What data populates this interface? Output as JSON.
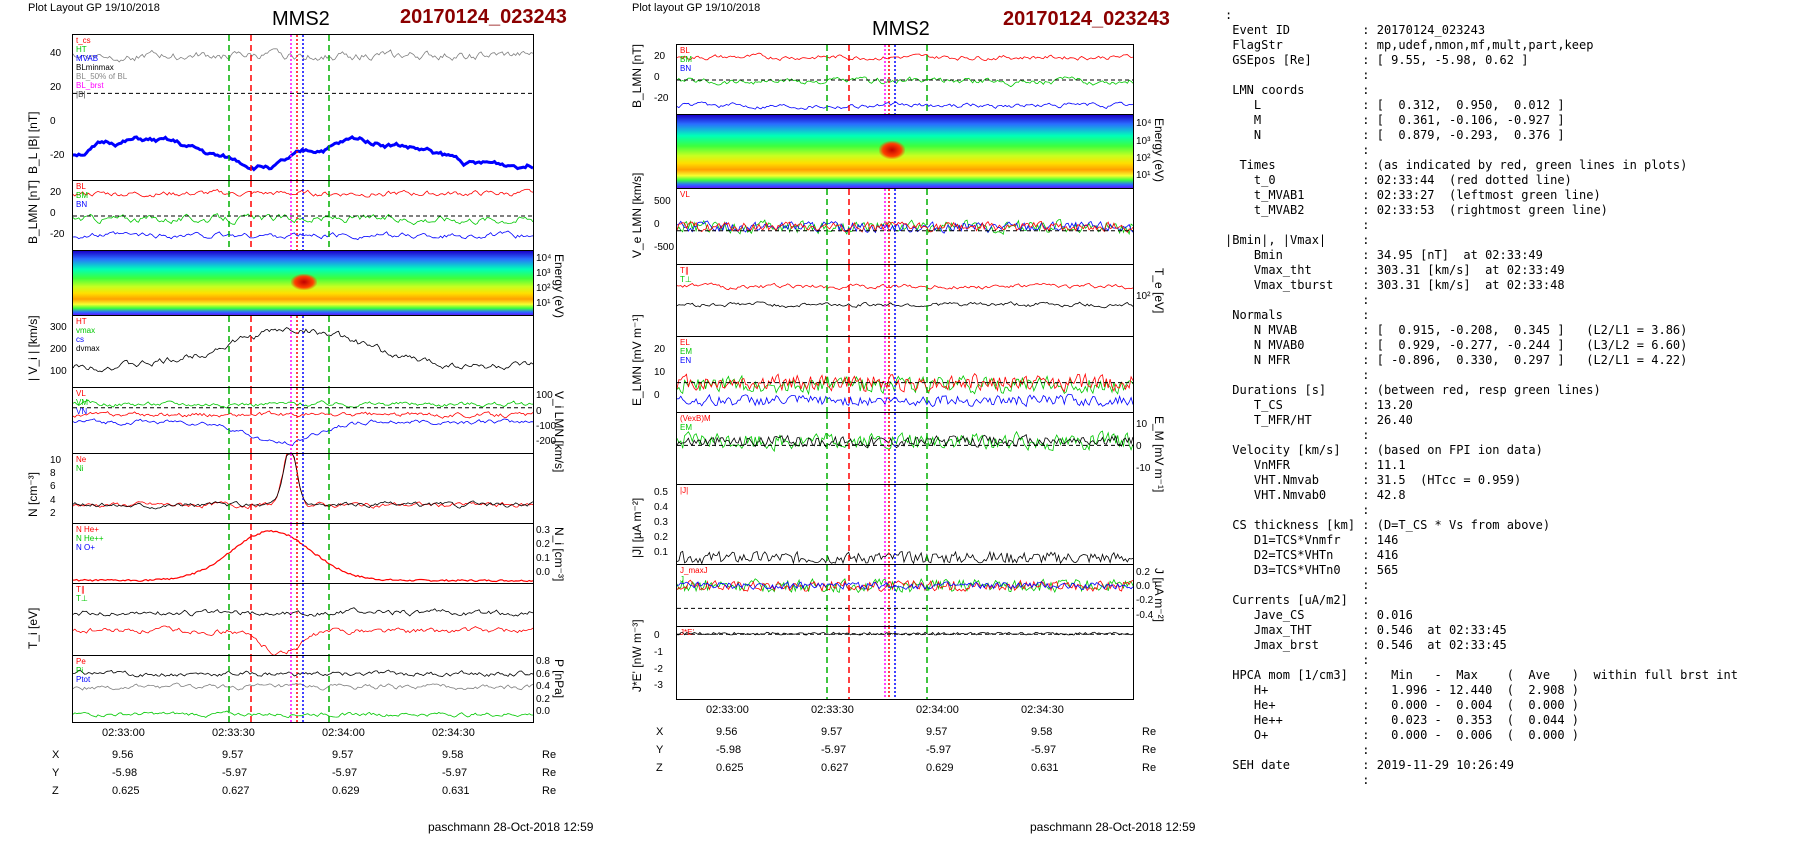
{
  "left": {
    "header": "Plot Layout GP 19/10/2018",
    "spacecraft": "MMS2",
    "event": "20170124_023243",
    "footer": "paschmann 28-Oct-2018 12:59",
    "time_ticks": [
      "02:33:00",
      "02:33:30",
      "02:34:00",
      "02:34:30"
    ],
    "panels": [
      {
        "ylabel": "B_L |B| [nT]",
        "ticks": [
          "40",
          "20",
          "0",
          "-20"
        ],
        "legend": [
          "t_cs",
          "HT",
          "MVAB",
          "BLminmax",
          "BL_50% of BL",
          "BL_brst",
          "|B|"
        ]
      },
      {
        "ylabel": "B_LMN [nT]",
        "ticks": [
          "20",
          "0",
          "-20"
        ],
        "legend": [
          "BL",
          "BM",
          "BN"
        ]
      },
      {
        "ylabel": "Energy (eV)",
        "ticks": [
          "10⁴",
          "10³",
          "10²",
          "10¹"
        ],
        "legend": []
      },
      {
        "ylabel": "| V_i | [km/s]",
        "ticks": [
          "300",
          "200",
          "100"
        ],
        "legend": [
          "HT",
          "vmax",
          "cs",
          "dvmax"
        ]
      },
      {
        "ylabel": "V_i LMN [km/s]",
        "ticks": [
          "100",
          "0",
          "-100",
          "-200"
        ],
        "legend": [
          "VL",
          "VM",
          "VN"
        ]
      },
      {
        "ylabel": "N [cm⁻³]",
        "ticks": [
          "10",
          "8",
          "6",
          "4",
          "2"
        ],
        "legend": [
          "Ne",
          "Ni"
        ]
      },
      {
        "ylabel": "N_i [cm⁻³]",
        "ticks": [
          "0.3",
          "0.2",
          "0.1",
          "0.0"
        ],
        "legend": [
          "N He+",
          "N He++",
          "N O+"
        ]
      },
      {
        "ylabel": "T_i [eV]",
        "ticks": [],
        "legend": [
          "T∥",
          "T⊥"
        ]
      },
      {
        "ylabel": "P [nPa]",
        "ticks": [
          "0.8",
          "0.6",
          "0.4",
          "0.2",
          "0.0"
        ],
        "legend": [
          "Pe",
          "Pi",
          "Ptot"
        ]
      }
    ],
    "positions": {
      "rows": [
        {
          "label": "X",
          "vals": [
            "9.56",
            "9.57",
            "9.57",
            "9.58"
          ],
          "unit": "Re"
        },
        {
          "label": "Y",
          "vals": [
            "-5.98",
            "-5.97",
            "-5.97",
            "-5.97"
          ],
          "unit": "Re"
        },
        {
          "label": "Z",
          "vals": [
            "0.625",
            "0.627",
            "0.629",
            "0.631"
          ],
          "unit": "Re"
        }
      ]
    }
  },
  "middle": {
    "header": "Plot layout GP 19/10/2018",
    "spacecraft": "MMS2",
    "event": "20170124_023243",
    "footer": "paschmann 28-Oct-2018 12:59",
    "time_ticks": [
      "02:33:00",
      "02:33:30",
      "02:34:00",
      "02:34:30"
    ],
    "panels": [
      {
        "ylabel": "B_LMN [nT]",
        "ticks": [
          "20",
          "0",
          "-20"
        ],
        "legend": [
          "BL",
          "BM",
          "BN"
        ]
      },
      {
        "ylabel": "Energy (eV)",
        "ticks": [
          "10⁴",
          "10³",
          "10²",
          "10¹"
        ],
        "legend": []
      },
      {
        "ylabel": "V_e LMN [km/s]",
        "ticks": [
          "500",
          "0",
          "-500"
        ],
        "legend": [
          "VL"
        ]
      },
      {
        "ylabel": "T_e [eV]",
        "ticks": [
          "10²"
        ],
        "legend": [
          "T∥",
          "T⊥"
        ]
      },
      {
        "ylabel": "E_LMN [mV m⁻¹]",
        "ticks": [
          "20",
          "10",
          "0"
        ],
        "legend": [
          "EL",
          "EM",
          "EN"
        ]
      },
      {
        "ylabel": "E_M [mV m⁻¹]",
        "ticks": [
          "10",
          "0",
          "-10"
        ],
        "legend": [
          "(VexB)M",
          "EM"
        ]
      },
      {
        "ylabel": "|J| [µA m⁻²]",
        "ticks": [
          "0.5",
          "0.4",
          "0.3",
          "0.2",
          "0.1"
        ],
        "legend": [
          "|J|"
        ]
      },
      {
        "ylabel": "J [µA m⁻²]",
        "ticks": [
          "0.2",
          "0.0",
          "-0.2",
          "-0.4"
        ],
        "legend": [
          "J_maxJ",
          "J"
        ]
      },
      {
        "ylabel": "J*E' [nW m⁻³]",
        "ticks": [
          "0",
          "-1",
          "-2",
          "-3"
        ],
        "legend": [
          "J*E'"
        ]
      }
    ],
    "positions": {
      "rows": [
        {
          "label": "X",
          "vals": [
            "9.56",
            "9.57",
            "9.57",
            "9.58"
          ],
          "unit": "Re"
        },
        {
          "label": "Y",
          "vals": [
            "-5.98",
            "-5.97",
            "-5.97",
            "-5.97"
          ],
          "unit": "Re"
        },
        {
          "label": "Z",
          "vals": [
            "0.625",
            "0.627",
            "0.629",
            "0.631"
          ],
          "unit": "Re"
        }
      ]
    }
  },
  "info_lines": [
    ":",
    " Event ID          : 20170124_023243",
    " FlagStr           : mp,udef,nmon,mf,mult,part,keep",
    " GSEpos [Re]       : [ 9.55, -5.98, 0.62 ]",
    "                   :",
    " LMN coords        :",
    "    L              : [  0.312,  0.950,  0.012 ]",
    "    M              : [  0.361, -0.106, -0.927 ]",
    "    N              : [  0.879, -0.293,  0.376 ]",
    "                   :",
    "  Times            : (as indicated by red, green lines in plots)",
    "    t_0            : 02:33:44  (red dotted line)",
    "    t_MVAB1        : 02:33:27  (leftmost green line)",
    "    t_MVAB2        : 02:33:53  (rightmost green line)",
    "                   :",
    "|Bmin|, |Vmax|     :",
    "    Bmin           : 34.95 [nT]  at 02:33:49",
    "    Vmax_tht       : 303.31 [km/s]  at 02:33:49",
    "    Vmax_tburst    : 303.31 [km/s]  at 02:33:48",
    "                   :",
    " Normals           :",
    "    N MVAB         : [  0.915, -0.208,  0.345 ]   (L2/L1 = 3.86)",
    "    N MVAB0        : [  0.929, -0.277, -0.244 ]   (L3/L2 = 6.60)",
    "    N MFR          : [ -0.896,  0.330,  0.297 ]   (L2/L1 = 4.22)",
    "                   :",
    " Durations [s]     : (between red, resp green lines)",
    "    T_CS           : 13.20",
    "    T_MFR/HT       : 26.40",
    "                   :",
    " Velocity [km/s]   : (based on FPI ion data)",
    "    VnMFR          : 11.1",
    "    VHT.Nmvab      : 31.5  (HTcc = 0.959)",
    "    VHT.Nmvab0     : 42.8",
    "                   :",
    " CS thickness [km] : (D=T_CS * Vs from above)",
    "    D1=TCS*Vnmfr   : 146",
    "    D2=TCS*VHTn    : 416",
    "    D3=TCS*VHTn0   : 565",
    "                   :",
    " Currents [uA/m2]  :",
    "    Jave_CS        : 0.016",
    "    Jmax_THT       : 0.546  at 02:33:45",
    "    Jmax_brst      : 0.546  at 02:33:45",
    "                   :",
    " HPCA mom [1/cm3]  :   Min   -  Max    (  Ave   )  within full brst int",
    "    H+             :   1.996 - 12.440  (  2.908 )",
    "    He+            :   0.000 -  0.004  (  0.000 )",
    "    He++           :   0.023 -  0.353  (  0.044 )",
    "    O+             :   0.000 -  0.006  (  0.000 )",
    "                   :",
    " SEH date          : 2019-11-29 10:26:49",
    "                   :"
  ],
  "colors": {
    "event": "#8b0000",
    "L": "#ff0000",
    "M": "#00c800",
    "N": "#0000ff",
    "black": "#000000",
    "magenta": "#ff00ff"
  }
}
